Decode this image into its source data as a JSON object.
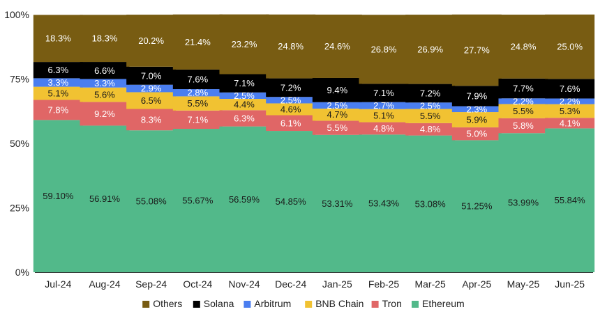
{
  "chart_data": {
    "type": "bar",
    "stacked": true,
    "percent_stacked": true,
    "categories": [
      "Jul-24",
      "Aug-24",
      "Sep-24",
      "Oct-24",
      "Nov-24",
      "Dec-24",
      "Jan-25",
      "Feb-25",
      "Mar-25",
      "Apr-25",
      "May-25",
      "Jun-25"
    ],
    "ylim": [
      0,
      100
    ],
    "yticks": [
      "0%",
      "25%",
      "50%",
      "75%",
      "100%"
    ],
    "grid": false,
    "legend_position": "bottom",
    "series": [
      {
        "name": "Ethereum",
        "color": "#52b98a",
        "label_color": "#1a1a1a",
        "values": [
          59.1,
          56.91,
          55.08,
          55.67,
          56.59,
          54.85,
          53.31,
          53.43,
          53.08,
          51.25,
          53.99,
          55.84
        ],
        "labels": [
          "59.10%",
          "56.91%",
          "55.08%",
          "55.67%",
          "56.59%",
          "54.85%",
          "53.31%",
          "53.43%",
          "53.08%",
          "51.25%",
          "53.99%",
          "55.84%"
        ]
      },
      {
        "name": "Tron",
        "color": "#e06666",
        "label_color": "#ffffff",
        "values": [
          7.8,
          9.2,
          8.3,
          7.1,
          6.3,
          6.1,
          5.5,
          4.8,
          4.8,
          5.0,
          5.8,
          4.1
        ],
        "labels": [
          "7.8%",
          "9.2%",
          "8.3%",
          "7.1%",
          "6.3%",
          "6.1%",
          "5.5%",
          "4.8%",
          "4.8%",
          "5.0%",
          "5.8%",
          "4.1%"
        ]
      },
      {
        "name": "BNB Chain",
        "color": "#f1c232",
        "label_color": "#1a1a1a",
        "values": [
          5.1,
          5.6,
          6.5,
          5.5,
          4.4,
          4.6,
          4.7,
          5.1,
          5.5,
          5.9,
          5.5,
          5.3
        ],
        "labels": [
          "5.1%",
          "5.6%",
          "6.5%",
          "5.5%",
          "4.4%",
          "4.6%",
          "4.7%",
          "5.1%",
          "5.5%",
          "5.9%",
          "5.5%",
          "5.3%"
        ]
      },
      {
        "name": "Arbitrum",
        "color": "#4a7ef0",
        "label_color": "#ffffff",
        "values": [
          3.3,
          3.3,
          2.9,
          2.8,
          2.5,
          2.5,
          2.5,
          2.7,
          2.5,
          2.3,
          2.2,
          2.2
        ],
        "labels": [
          "3.3%",
          "3.3%",
          "2.9%",
          "2.8%",
          "2.5%",
          "2.5%",
          "2.5%",
          "2.7%",
          "2.5%",
          "2.3%",
          "2.2%",
          "2.2%"
        ]
      },
      {
        "name": "Solana",
        "color": "#000000",
        "label_color": "#ffffff",
        "values": [
          6.3,
          6.6,
          7.0,
          7.6,
          7.1,
          7.2,
          9.4,
          7.1,
          7.2,
          7.9,
          7.7,
          7.6
        ],
        "labels": [
          "6.3%",
          "6.6%",
          "7.0%",
          "7.6%",
          "7.1%",
          "7.2%",
          "9.4%",
          "7.1%",
          "7.2%",
          "7.9%",
          "7.7%",
          "7.6%"
        ]
      },
      {
        "name": "Others",
        "color": "#785c12",
        "label_color": "#ffffff",
        "values": [
          18.3,
          18.3,
          20.2,
          21.4,
          23.2,
          24.8,
          24.6,
          26.8,
          26.9,
          27.7,
          24.8,
          25.0
        ],
        "labels": [
          "18.3%",
          "18.3%",
          "20.2%",
          "21.4%",
          "23.2%",
          "24.8%",
          "24.6%",
          "26.8%",
          "26.9%",
          "27.7%",
          "24.8%",
          "25.0%"
        ]
      }
    ],
    "legend_order": [
      "Others",
      "Solana",
      "Arbitrum",
      "BNB Chain",
      "Tron",
      "Ethereum"
    ]
  }
}
